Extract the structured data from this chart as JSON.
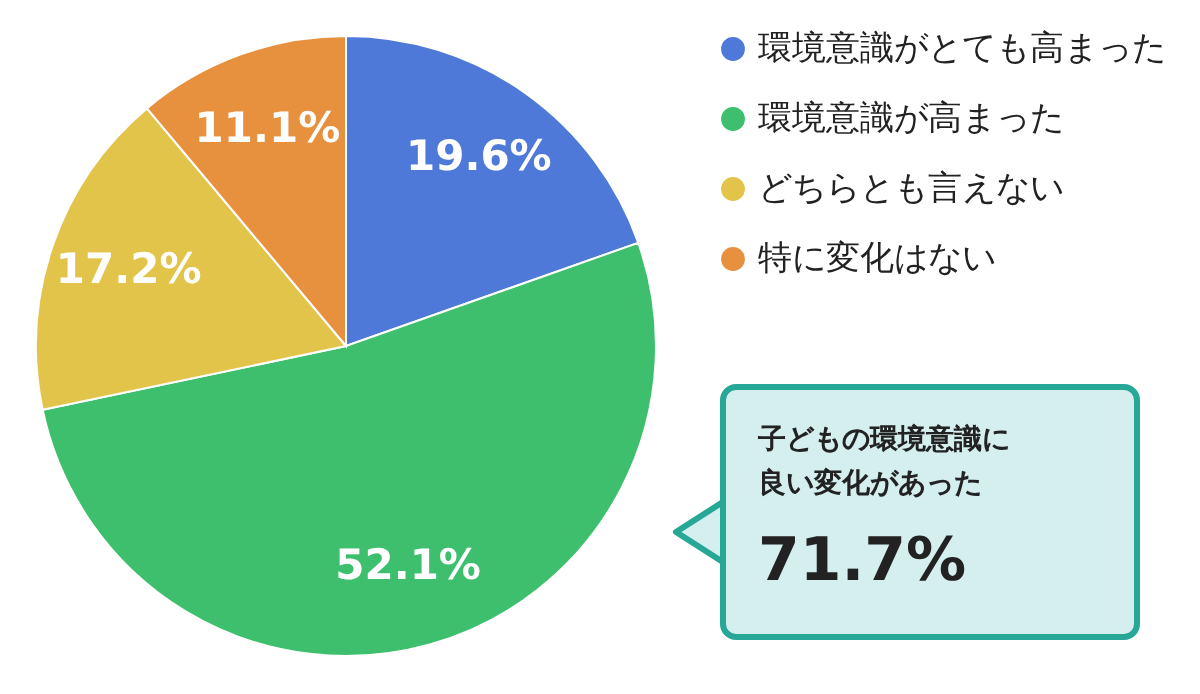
{
  "chart_data": {
    "type": "pie",
    "categories": [
      "環境意識がとても高まった",
      "環境意識が高まった",
      "どちらとも言えない",
      "特に変化はない"
    ],
    "values": [
      19.6,
      52.1,
      17.2,
      11.1
    ],
    "colors": [
      "#4f79d9",
      "#3dbf6e",
      "#e3c44b",
      "#e7913f"
    ],
    "value_labels": [
      "19.6%",
      "52.1%",
      "17.2%",
      "11.1%"
    ],
    "legend": "top right",
    "annotations": [
      "子どもの環境意識に良い変化があった",
      "71.7%"
    ]
  }
}
